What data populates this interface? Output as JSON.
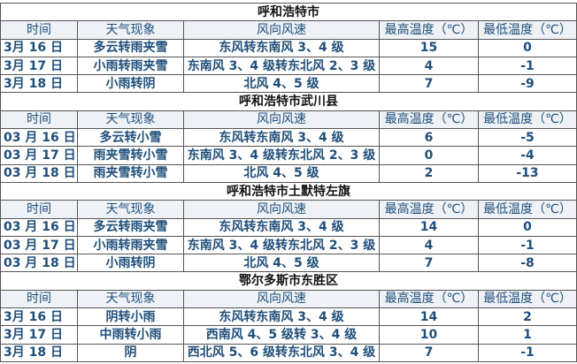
{
  "headers": [
    "时间",
    "天气现象",
    "风向风速",
    "最高温度（℃）",
    "最低温度（℃）"
  ],
  "sections": [
    {
      "title": "呼和浩特市",
      "rows": [
        [
          "3月 16 日",
          "多云转雨夹雪",
          "东风转东南风 3、4 级",
          "15",
          "0"
        ],
        [
          "3月 17 日",
          "小雨转雨夹雪",
          "东南风 3、4 级转东北风 2、3 级",
          "4",
          "-1"
        ],
        [
          "3月 18 日",
          "小雨转阴",
          "北风 4、5 级",
          "7",
          "-9"
        ]
      ]
    },
    {
      "title": "呼和浩特市武川县",
      "rows": [
        [
          "03 月 16 日",
          "多云转小雪",
          "东风转东南风 3、4 级",
          "6",
          "-5"
        ],
        [
          "03 月 17 日",
          "雨夹雪转小雪",
          "东南风 3、4 级转东北风 2、3 级",
          "0",
          "-4"
        ],
        [
          "03 月 18 日",
          "雨夹雪转小雪",
          "北风 4、5 级",
          "2",
          "-13"
        ]
      ]
    },
    {
      "title": "呼和浩特市土默特左旗",
      "rows": [
        [
          "03 月 16 日",
          "多云转雨夹雪",
          "东风转东南风 3、4 级",
          "14",
          "0"
        ],
        [
          "03 月 17 日",
          "小雨转雨夹雪",
          "东南风 3、4 级转东北风 2、3 级",
          "4",
          "-1"
        ],
        [
          "03 月 18 日",
          "小雨转阴",
          "北风 4、5 级",
          "7",
          "-8"
        ]
      ]
    },
    {
      "title": "鄂尔多斯市东胜区",
      "rows": [
        [
          "3月 16 日",
          "阴转小雨",
          "东风转东南风 3、4 级",
          "14",
          "2"
        ],
        [
          "3月 17 日",
          "中雨转小雨",
          "西南风 4、5 级转 3、4 级",
          "10",
          "1"
        ],
        [
          "3月 18 日",
          "阴",
          "西北风 5、6 级转东北风 3、4 级",
          "7",
          "-1"
        ]
      ]
    }
  ]
}
